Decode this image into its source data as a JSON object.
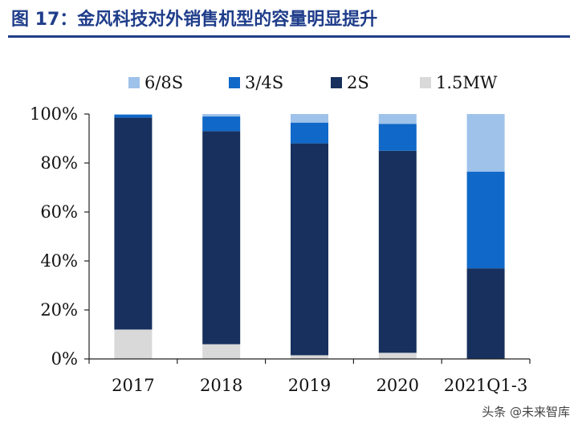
{
  "title": "图 17：金风科技对外销售机型的容量明显提升",
  "watermark": "头条 @未来智库",
  "colors": {
    "title": "#1f3d8a",
    "6/8S": "#9ec2ea",
    "3/4S": "#1068c8",
    "2S": "#17305e",
    "1.5MW": "#d9d9d9"
  },
  "chart_data": {
    "type": "bar",
    "stacked": true,
    "categories": [
      "2017",
      "2018",
      "2019",
      "2020",
      "2021Q1-3"
    ],
    "series": [
      {
        "name": "1.5MW",
        "values": [
          12,
          6,
          1.5,
          2.5,
          0
        ]
      },
      {
        "name": "2S",
        "values": [
          86.5,
          87,
          86.5,
          82.5,
          37
        ]
      },
      {
        "name": "3/4S",
        "values": [
          1.2,
          6,
          8.5,
          11,
          39.5
        ]
      },
      {
        "name": "6/8S",
        "values": [
          0.3,
          1,
          3.5,
          4,
          23.5
        ]
      }
    ],
    "legend_order": [
      "6/8S",
      "3/4S",
      "2S",
      "1.5MW"
    ],
    "legend_position": "top",
    "y_ticks": [
      "0%",
      "20%",
      "40%",
      "60%",
      "80%",
      "100%"
    ],
    "ylim": [
      0,
      100
    ],
    "grid": false
  }
}
